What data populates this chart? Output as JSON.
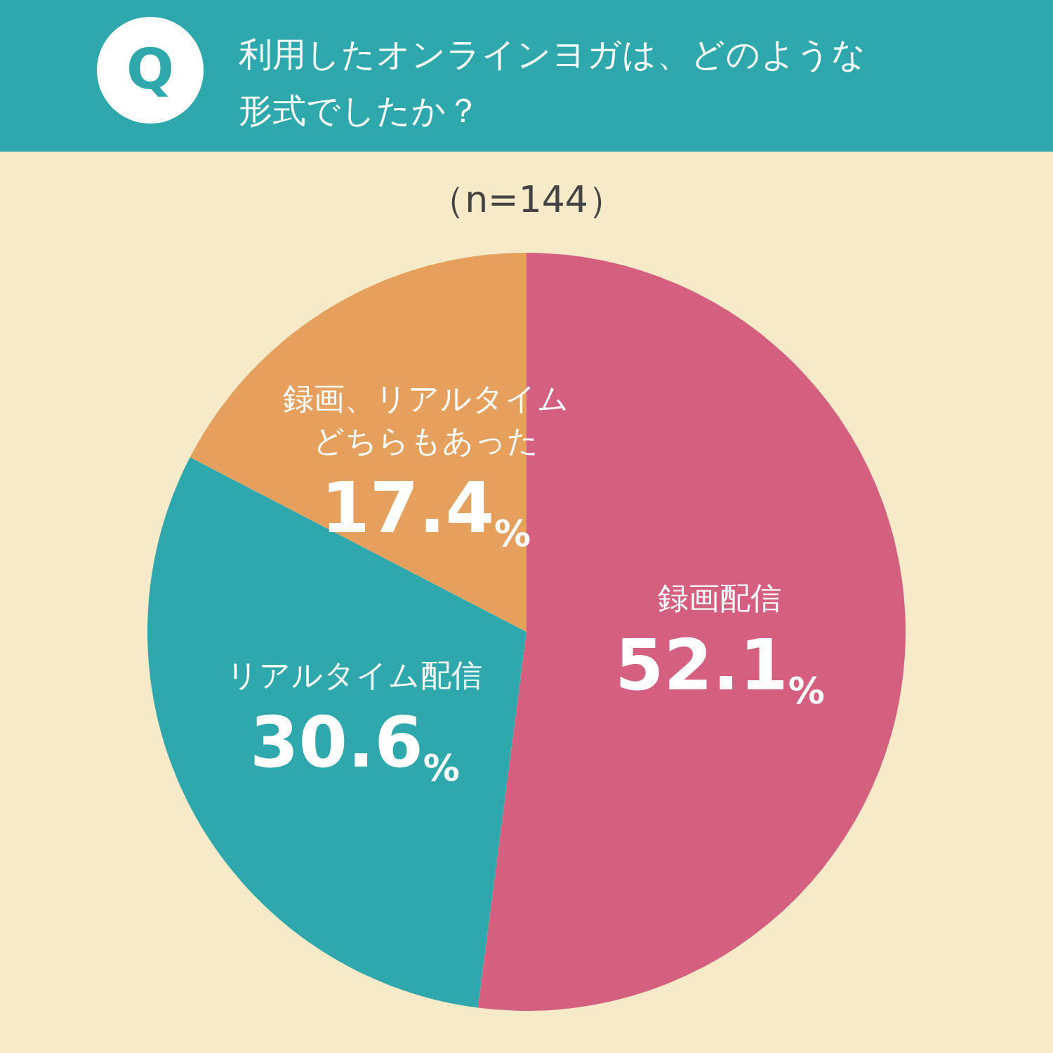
{
  "chart_data": {
    "type": "pie",
    "title": "利用したオンラインヨガは、どのような形式でしたか？",
    "subtitle": "（n=144）",
    "annotations": [
      "Q"
    ],
    "categories": [
      "録画配信",
      "リアルタイム配信",
      "録画、リアルタイムどちらもあった"
    ],
    "values": [
      52.1,
      30.6,
      17.4
    ],
    "value_labels": [
      "52.1%",
      "30.6%",
      "17.4%"
    ],
    "colors": [
      "#d45f7e",
      "#2ea8ac",
      "#e4a05c"
    ],
    "legend": false
  }
}
